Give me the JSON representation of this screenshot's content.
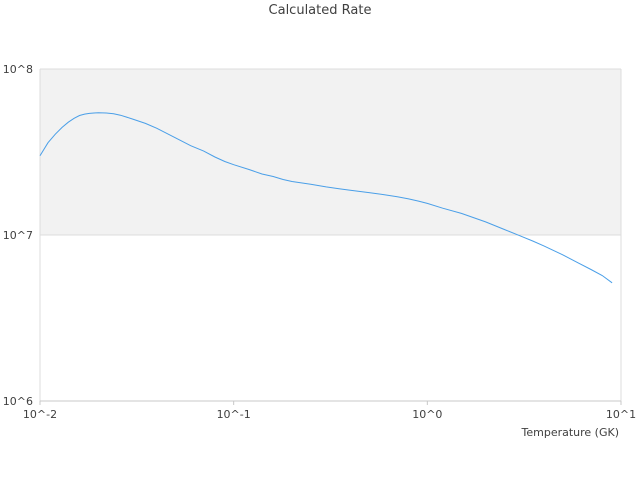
{
  "chart_data": {
    "type": "line",
    "title": "Calculated Rate",
    "xlabel": "Temperature (GK)",
    "ylabel": "",
    "x_scale": "log",
    "y_scale": "log",
    "xlim": [
      0.01,
      10
    ],
    "ylim": [
      1000000,
      100000000
    ],
    "x_ticks": [
      {
        "value": 0.01,
        "label": "10^-2"
      },
      {
        "value": 0.1,
        "label": "10^-1"
      },
      {
        "value": 1,
        "label": "10^0"
      },
      {
        "value": 10,
        "label": "10^1"
      }
    ],
    "y_ticks": [
      {
        "value": 1000000,
        "label": "10^6"
      },
      {
        "value": 10000000,
        "label": "10^7"
      },
      {
        "value": 100000000,
        "label": "10^8"
      }
    ],
    "shaded_band": {
      "y_from": 10000000,
      "y_to": 100000000,
      "color": "#f2f2f2"
    },
    "grid": true,
    "legend": "none",
    "colors": {
      "line": "#4a9fe8",
      "grid": "#dcdcdc",
      "axis": "#c8c8c8",
      "text": "#404040"
    },
    "series": [
      {
        "x": [
          0.01,
          0.011,
          0.012,
          0.013,
          0.014,
          0.015,
          0.016,
          0.017,
          0.018,
          0.019,
          0.02,
          0.022,
          0.024,
          0.026,
          0.028,
          0.03,
          0.035,
          0.04,
          0.05,
          0.06,
          0.07,
          0.08,
          0.09,
          0.1,
          0.12,
          0.14,
          0.16,
          0.18,
          0.2,
          0.25,
          0.3,
          0.35,
          0.4,
          0.5,
          0.6,
          0.7,
          0.8,
          0.9,
          1.0,
          1.2,
          1.5,
          2.0,
          2.5,
          3.0,
          3.5,
          4.0,
          5.0,
          6.0,
          7.0,
          8.0,
          9.0
        ],
        "y": [
          30000000,
          36000000,
          40500000,
          44500000,
          47800000,
          50500000,
          52500000,
          53500000,
          54000000,
          54300000,
          54500000,
          54300000,
          53700000,
          52700000,
          51300000,
          50000000,
          47000000,
          44000000,
          38500000,
          34500000,
          32000000,
          29500000,
          27700000,
          26500000,
          24800000,
          23300000,
          22500000,
          21600000,
          21000000,
          20200000,
          19500000,
          19000000,
          18600000,
          18000000,
          17500000,
          17000000,
          16500000,
          16000000,
          15500000,
          14500000,
          13500000,
          12000000,
          10800000,
          9900000,
          9200000,
          8600000,
          7600000,
          6800000,
          6200000,
          5700000,
          5150000
        ]
      }
    ]
  }
}
